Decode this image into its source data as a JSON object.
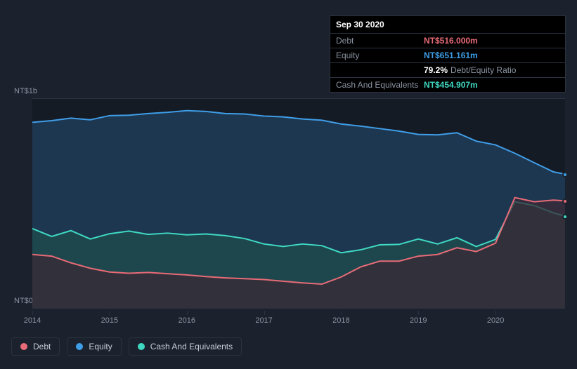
{
  "tooltip": {
    "date": "Sep 30 2020",
    "rows": [
      {
        "label": "Debt",
        "value": "NT$516.000m",
        "color": "#e86b77"
      },
      {
        "label": "Equity",
        "value": "NT$651.161m",
        "color": "#3f9ee8"
      },
      {
        "label": "",
        "ratio_pct": "79.2%",
        "ratio_label": "Debt/Equity Ratio"
      },
      {
        "label": "Cash And Equivalents",
        "value": "NT$454.907m",
        "color": "#3fd9c2"
      }
    ]
  },
  "chart": {
    "type": "area",
    "background_color": "#151b25",
    "page_background": "#1b222d",
    "grid_color": "#2a3240",
    "y_axis": {
      "min": 0,
      "max": 1000,
      "labels": [
        {
          "value": 0,
          "text": "NT$0"
        },
        {
          "value": 1000,
          "text": "NT$1b"
        }
      ],
      "label_color": "#8b94a3",
      "label_fontsize": 11
    },
    "x_axis": {
      "min": 2014,
      "max": 2020.9,
      "ticks": [
        2014,
        2015,
        2016,
        2017,
        2018,
        2019,
        2020
      ],
      "label_color": "#8b94a3",
      "label_fontsize": 11
    },
    "series": [
      {
        "name": "Equity",
        "color": "#3f9ee8",
        "fill": "#1f3b56",
        "fill_opacity": 0.9,
        "line_width": 2,
        "data": [
          [
            2014.0,
            888
          ],
          [
            2014.25,
            896
          ],
          [
            2014.5,
            908
          ],
          [
            2014.75,
            900
          ],
          [
            2015.0,
            920
          ],
          [
            2015.25,
            922
          ],
          [
            2015.5,
            930
          ],
          [
            2015.75,
            936
          ],
          [
            2016.0,
            944
          ],
          [
            2016.25,
            940
          ],
          [
            2016.5,
            930
          ],
          [
            2016.75,
            928
          ],
          [
            2017.0,
            918
          ],
          [
            2017.25,
            914
          ],
          [
            2017.5,
            904
          ],
          [
            2017.75,
            898
          ],
          [
            2018.0,
            880
          ],
          [
            2018.25,
            870
          ],
          [
            2018.5,
            858
          ],
          [
            2018.75,
            846
          ],
          [
            2019.0,
            830
          ],
          [
            2019.25,
            828
          ],
          [
            2019.5,
            838
          ],
          [
            2019.75,
            798
          ],
          [
            2020.0,
            780
          ],
          [
            2020.25,
            740
          ],
          [
            2020.5,
            695
          ],
          [
            2020.75,
            651
          ],
          [
            2020.9,
            640
          ]
        ]
      },
      {
        "name": "Cash And Equivalents",
        "color": "#3fd9c2",
        "fill": "#1d4a4c",
        "fill_opacity": 0.85,
        "line_width": 2,
        "data": [
          [
            2014.0,
            380
          ],
          [
            2014.25,
            342
          ],
          [
            2014.5,
            370
          ],
          [
            2014.75,
            330
          ],
          [
            2015.0,
            355
          ],
          [
            2015.25,
            368
          ],
          [
            2015.5,
            352
          ],
          [
            2015.75,
            358
          ],
          [
            2016.0,
            350
          ],
          [
            2016.25,
            354
          ],
          [
            2016.5,
            346
          ],
          [
            2016.75,
            332
          ],
          [
            2017.0,
            306
          ],
          [
            2017.25,
            294
          ],
          [
            2017.5,
            306
          ],
          [
            2017.75,
            298
          ],
          [
            2018.0,
            264
          ],
          [
            2018.25,
            278
          ],
          [
            2018.5,
            302
          ],
          [
            2018.75,
            304
          ],
          [
            2019.0,
            330
          ],
          [
            2019.25,
            306
          ],
          [
            2019.5,
            336
          ],
          [
            2019.75,
            294
          ],
          [
            2020.0,
            328
          ],
          [
            2020.25,
            508
          ],
          [
            2020.5,
            490
          ],
          [
            2020.75,
            454.9
          ],
          [
            2020.9,
            440
          ]
        ]
      },
      {
        "name": "Debt",
        "color": "#e86b77",
        "fill": "#3a2a36",
        "fill_opacity": 0.75,
        "line_width": 2,
        "data": [
          [
            2014.0,
            256
          ],
          [
            2014.25,
            248
          ],
          [
            2014.5,
            216
          ],
          [
            2014.75,
            190
          ],
          [
            2015.0,
            172
          ],
          [
            2015.25,
            166
          ],
          [
            2015.5,
            170
          ],
          [
            2015.75,
            164
          ],
          [
            2016.0,
            158
          ],
          [
            2016.25,
            150
          ],
          [
            2016.5,
            144
          ],
          [
            2016.75,
            140
          ],
          [
            2017.0,
            136
          ],
          [
            2017.25,
            128
          ],
          [
            2017.5,
            120
          ],
          [
            2017.75,
            114
          ],
          [
            2018.0,
            148
          ],
          [
            2018.25,
            196
          ],
          [
            2018.5,
            224
          ],
          [
            2018.75,
            224
          ],
          [
            2019.0,
            248
          ],
          [
            2019.25,
            256
          ],
          [
            2019.5,
            288
          ],
          [
            2019.75,
            270
          ],
          [
            2020.0,
            310
          ],
          [
            2020.25,
            528
          ],
          [
            2020.5,
            508
          ],
          [
            2020.75,
            516
          ],
          [
            2020.9,
            512
          ]
        ]
      }
    ],
    "legend": {
      "items": [
        {
          "label": "Debt",
          "color": "#e86b77"
        },
        {
          "label": "Equity",
          "color": "#3f9ee8"
        },
        {
          "label": "Cash And Equivalents",
          "color": "#3fd9c2"
        }
      ],
      "fontsize": 12,
      "border_color": "#2a3240"
    }
  }
}
